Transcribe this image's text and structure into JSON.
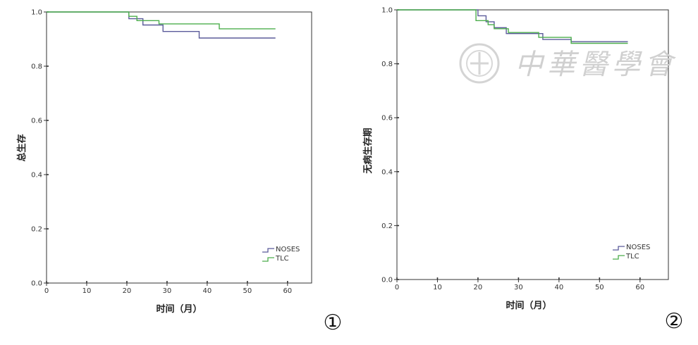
{
  "chart_data": [
    {
      "type": "line",
      "panel_label": "①",
      "xlabel": "时间（月）",
      "ylabel": "总生存",
      "xlim": [
        0,
        66
      ],
      "ylim": [
        0,
        1.0
      ],
      "xticks": [
        0,
        10,
        20,
        30,
        40,
        50,
        60
      ],
      "yticks": [
        0.0,
        0.2,
        0.4,
        0.6,
        0.8,
        1.0
      ],
      "ytick_labels": [
        "0.0",
        "0.2",
        "0.4",
        "0.6",
        "0.8",
        "1.0"
      ],
      "legend_position": "bottom-right",
      "grid": false,
      "series": [
        {
          "name": "NOSES",
          "color": "#5b5b9a",
          "x": [
            0,
            20.5,
            20.5,
            24,
            24,
            29,
            29,
            38,
            38,
            57
          ],
          "y": [
            1.0,
            1.0,
            0.975,
            0.975,
            0.952,
            0.952,
            0.928,
            0.928,
            0.904,
            0.904
          ]
        },
        {
          "name": "TLC",
          "color": "#4cae4c",
          "x": [
            0,
            20.5,
            20.5,
            22.5,
            22.5,
            28,
            28,
            43,
            43,
            57
          ],
          "y": [
            1.0,
            1.0,
            0.984,
            0.984,
            0.968,
            0.968,
            0.956,
            0.956,
            0.938,
            0.938
          ]
        }
      ]
    },
    {
      "type": "line",
      "panel_label": "②",
      "xlabel": "时间（月）",
      "ylabel": "无病生存期",
      "xlim": [
        0,
        67
      ],
      "ylim": [
        0,
        1.0
      ],
      "xticks": [
        0,
        10,
        20,
        30,
        40,
        50,
        60
      ],
      "yticks": [
        0.0,
        0.2,
        0.4,
        0.6,
        0.8,
        1.0
      ],
      "ytick_labels": [
        "0.0",
        "0.2",
        "0.4",
        "0.6",
        "0.8",
        "1.0"
      ],
      "legend_position": "bottom-right",
      "grid": false,
      "series": [
        {
          "name": "NOSES",
          "color": "#5b5b9a",
          "x": [
            0,
            20,
            20,
            22,
            22,
            24,
            24,
            27,
            27,
            36,
            36,
            43,
            43,
            57
          ],
          "y": [
            1.0,
            1.0,
            0.978,
            0.978,
            0.956,
            0.956,
            0.934,
            0.934,
            0.912,
            0.912,
            0.89,
            0.89,
            0.882,
            0.882
          ]
        },
        {
          "name": "TLC",
          "color": "#4cae4c",
          "x": [
            0,
            19.5,
            19.5,
            22.5,
            22.5,
            24,
            24,
            27.5,
            27.5,
            35,
            35,
            43,
            43,
            57
          ],
          "y": [
            1.0,
            1.0,
            0.96,
            0.96,
            0.945,
            0.945,
            0.93,
            0.93,
            0.916,
            0.916,
            0.898,
            0.898,
            0.876,
            0.876
          ]
        }
      ]
    }
  ],
  "watermark": {
    "text": "中華醫學會",
    "color": "#cfcfcf"
  }
}
